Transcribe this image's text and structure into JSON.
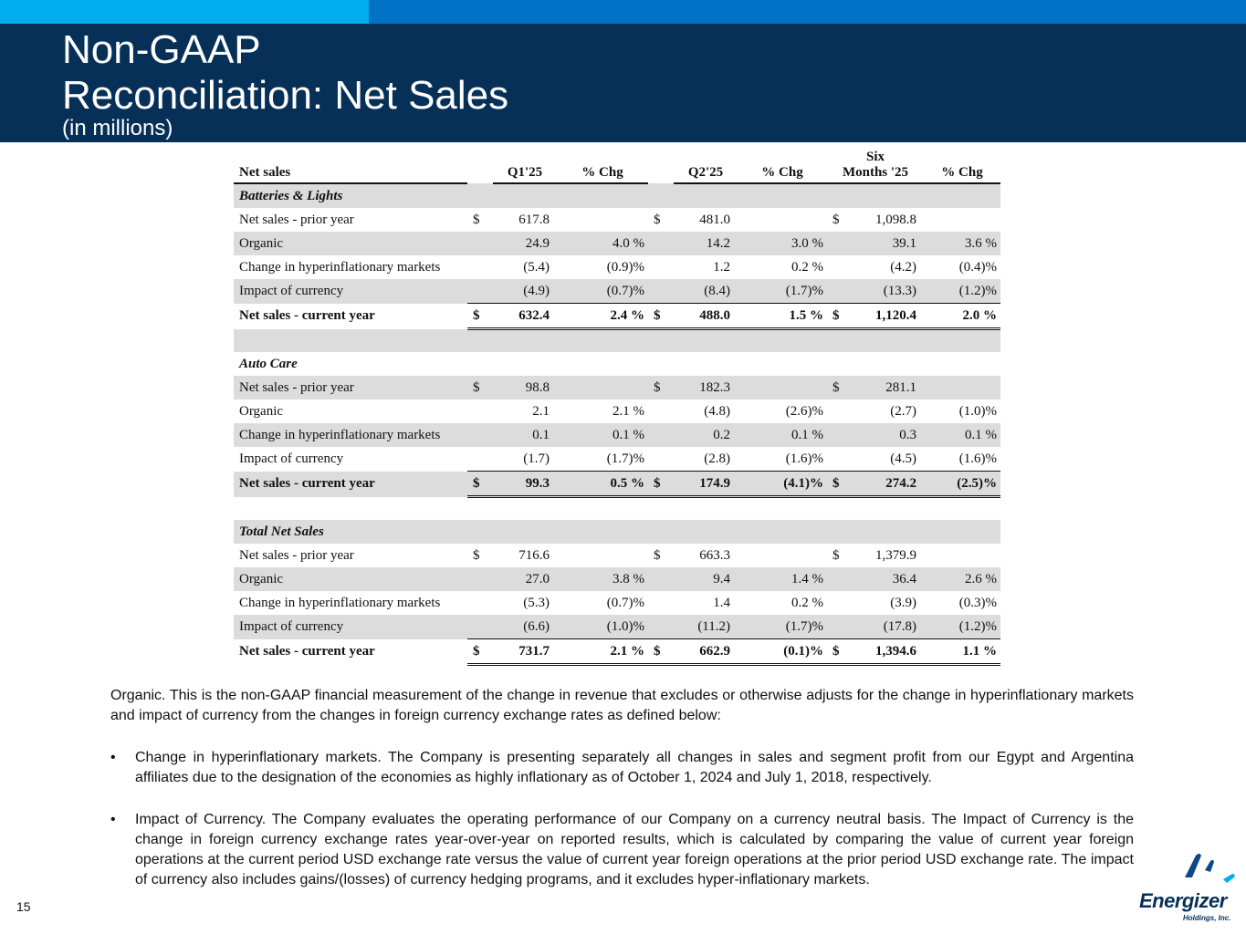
{
  "header": {
    "title_line1": "Non-GAAP",
    "title_line2": "Reconciliation:  Net Sales",
    "subtitle": "(in millions)"
  },
  "table": {
    "columns": {
      "label": "Net sales",
      "q1": "Q1'25",
      "q1_chg": "% Chg",
      "q2": "Q2'25",
      "q2_chg": "% Chg",
      "six_line1": "Six",
      "six_line2": "Months '25",
      "six_chg": "% Chg"
    },
    "sections": [
      {
        "name": "Batteries & Lights",
        "rows": [
          {
            "label": "Net sales - prior year",
            "q1": "617.8",
            "q1_chg": "",
            "q2": "481.0",
            "q2_chg": "",
            "six": "1,098.8",
            "six_chg": ""
          },
          {
            "label": "Organic",
            "q1": "24.9",
            "q1_chg": "4.0 %",
            "q2": "14.2",
            "q2_chg": "3.0 %",
            "six": "39.1",
            "six_chg": "3.6 %"
          },
          {
            "label": "Change in hyperinflationary markets",
            "q1": "(5.4)",
            "q1_chg": "(0.9)%",
            "q2": "1.2",
            "q2_chg": "0.2 %",
            "six": "(4.2)",
            "six_chg": "(0.4)%"
          },
          {
            "label": "Impact of currency",
            "q1": "(4.9)",
            "q1_chg": "(0.7)%",
            "q2": "(8.4)",
            "q2_chg": "(1.7)%",
            "six": "(13.3)",
            "six_chg": "(1.2)%"
          },
          {
            "label": "Net sales - current year",
            "q1": "632.4",
            "q1_chg": "2.4 %",
            "q2": "488.0",
            "q2_chg": "1.5 %",
            "six": "1,120.4",
            "six_chg": "2.0 %"
          }
        ]
      },
      {
        "name": "Auto Care",
        "rows": [
          {
            "label": "Net sales - prior year",
            "q1": "98.8",
            "q1_chg": "",
            "q2": "182.3",
            "q2_chg": "",
            "six": "281.1",
            "six_chg": ""
          },
          {
            "label": "Organic",
            "q1": "2.1",
            "q1_chg": "2.1 %",
            "q2": "(4.8)",
            "q2_chg": "(2.6)%",
            "six": "(2.7)",
            "six_chg": "(1.0)%"
          },
          {
            "label": "Change in hyperinflationary markets",
            "q1": "0.1",
            "q1_chg": "0.1 %",
            "q2": "0.2",
            "q2_chg": "0.1 %",
            "six": "0.3",
            "six_chg": "0.1 %"
          },
          {
            "label": "Impact of currency",
            "q1": "(1.7)",
            "q1_chg": "(1.7)%",
            "q2": "(2.8)",
            "q2_chg": "(1.6)%",
            "six": "(4.5)",
            "six_chg": "(1.6)%"
          },
          {
            "label": "Net sales - current year",
            "q1": "99.3",
            "q1_chg": "0.5 %",
            "q2": "174.9",
            "q2_chg": "(4.1)%",
            "six": "274.2",
            "six_chg": "(2.5)%"
          }
        ]
      },
      {
        "name": "Total Net Sales",
        "rows": [
          {
            "label": "Net sales - prior year",
            "q1": "716.6",
            "q1_chg": "",
            "q2": "663.3",
            "q2_chg": "",
            "six": "1,379.9",
            "six_chg": ""
          },
          {
            "label": "Organic",
            "q1": "27.0",
            "q1_chg": "3.8 %",
            "q2": "9.4",
            "q2_chg": "1.4 %",
            "six": "36.4",
            "six_chg": "2.6 %"
          },
          {
            "label": "Change in hyperinflationary markets",
            "q1": "(5.3)",
            "q1_chg": "(0.7)%",
            "q2": "1.4",
            "q2_chg": "0.2 %",
            "six": "(3.9)",
            "six_chg": "(0.3)%"
          },
          {
            "label": "Impact of currency",
            "q1": "(6.6)",
            "q1_chg": "(1.0)%",
            "q2": "(11.2)",
            "q2_chg": "(1.7)%",
            "six": "(17.8)",
            "six_chg": "(1.2)%"
          },
          {
            "label": "Net sales - current year",
            "q1": "731.7",
            "q1_chg": "2.1 %",
            "q2": "662.9",
            "q2_chg": "(0.1)%",
            "six": "1,394.6",
            "six_chg": "1.1 %"
          }
        ]
      }
    ]
  },
  "notes": {
    "intro": "Organic.  This is the non-GAAP financial measurement of the change in revenue that excludes or otherwise adjusts for the change in hyperinflationary markets and impact of currency from the changes in foreign currency exchange rates as defined below:",
    "bullet_symbol": "•",
    "bullet1": "Change in hyperinflationary markets. The Company is presenting separately all changes in sales and segment profit from our Egypt and Argentina affiliates due to the designation of the economies as highly inflationary as of October 1, 2024 and July 1, 2018, respectively.",
    "bullet2": "Impact of Currency. The Company evaluates the operating performance of our Company on a currency neutral basis. The Impact of Currency is the change in foreign currency exchange rates year-over-year on reported results, which is calculated by comparing the value of current year foreign operations at the current period USD exchange rate versus the value of current year foreign operations at the prior period USD exchange rate. The impact of currency also includes gains/(losses) of currency hedging programs, and it excludes hyper-inflationary markets."
  },
  "footer": {
    "page_number": "15",
    "logo_name": "Energizer",
    "logo_sub": "Holdings, Inc."
  },
  "currency_symbol": "$",
  "colors": {
    "header_bg": "#063057",
    "topbar_light": "#00aeef",
    "topbar_dark": "#0072c6",
    "row_shade": "#dcdcdc"
  }
}
